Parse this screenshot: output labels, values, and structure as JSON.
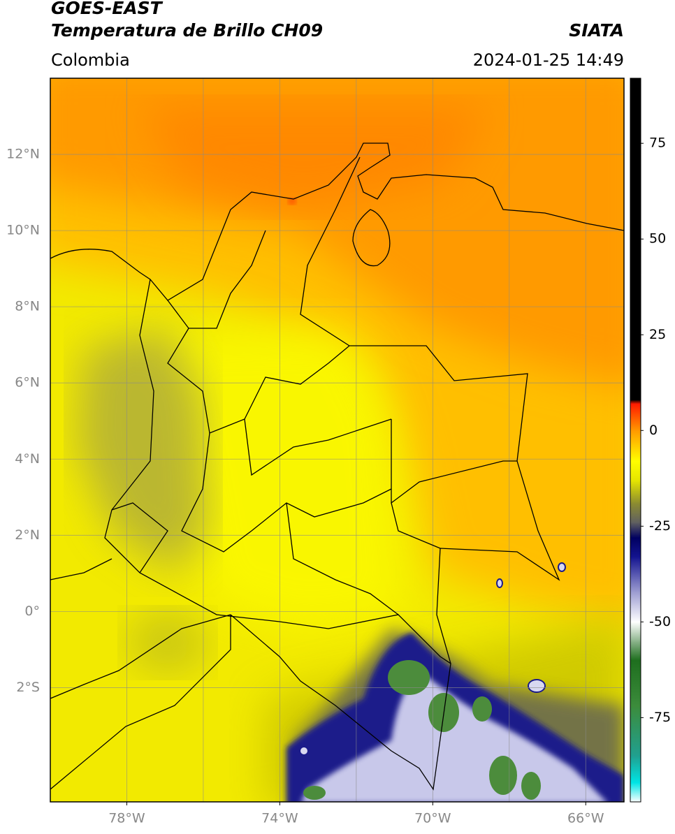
{
  "chart_data": {
    "type": "map",
    "title": "GOES-EAST",
    "subtitle": "Temperatura de Brillo CH09",
    "source": "SIATA",
    "region": "Colombia",
    "datetime": "2024-01-25 14:49",
    "xlim": [
      -80,
      -65
    ],
    "ylim": [
      -5,
      14
    ],
    "xticks": [
      {
        "value": -78,
        "label": "78°W"
      },
      {
        "value": -74,
        "label": "74°W"
      },
      {
        "value": -70,
        "label": "70°W"
      },
      {
        "value": -66,
        "label": "66°W"
      }
    ],
    "xgrid": [
      -78,
      -76,
      -74,
      -72,
      -70,
      -68,
      -66
    ],
    "yticks": [
      {
        "value": 12,
        "label": "12°N"
      },
      {
        "value": 10,
        "label": "10°N"
      },
      {
        "value": 8,
        "label": "8°N"
      },
      {
        "value": 6,
        "label": "6°N"
      },
      {
        "value": 4,
        "label": "4°N"
      },
      {
        "value": 2,
        "label": "2°N"
      },
      {
        "value": 0,
        "label": "0°"
      },
      {
        "value": -2,
        "label": "2°S"
      }
    ],
    "colorbar": {
      "lim": [
        -97,
        92
      ],
      "ticks": [
        75,
        50,
        25,
        0,
        -25,
        -50,
        -75
      ],
      "colorscale": [
        {
          "value": -97,
          "color": "#ffffff"
        },
        {
          "value": -92,
          "color": "#00e5e5"
        },
        {
          "value": -85,
          "color": "#20a090"
        },
        {
          "value": -72,
          "color": "#3c8c3c"
        },
        {
          "value": -60,
          "color": "#1e6e1e"
        },
        {
          "value": -55,
          "color": "#8cb48c"
        },
        {
          "value": -50,
          "color": "#ffffff"
        },
        {
          "value": -42,
          "color": "#9a9ad0"
        },
        {
          "value": -33,
          "color": "#141490"
        },
        {
          "value": -28,
          "color": "#000060"
        },
        {
          "value": -24,
          "color": "#606060"
        },
        {
          "value": -19,
          "color": "#8c8c30"
        },
        {
          "value": -13,
          "color": "#e6e600"
        },
        {
          "value": -8,
          "color": "#ffff00"
        },
        {
          "value": 0,
          "color": "#ff9900"
        },
        {
          "value": 7,
          "color": "#ff1a00"
        },
        {
          "value": 8,
          "color": "#000000"
        },
        {
          "value": 92,
          "color": "#000000"
        }
      ]
    }
  }
}
